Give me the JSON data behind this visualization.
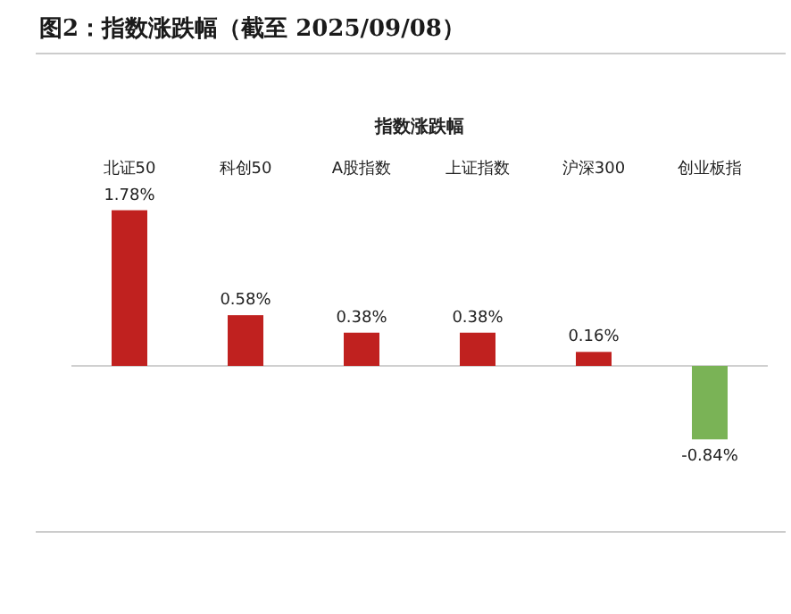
{
  "chart_data": {
    "type": "bar",
    "title": "图2：指数涨跌幅（截至 2025/09/08）",
    "subtitle": "指数涨跌幅",
    "categories": [
      "北证50",
      "科创50",
      "A股指数",
      "上证指数",
      "沪深300",
      "创业板指"
    ],
    "values": [
      1.78,
      0.58,
      0.38,
      0.38,
      0.16,
      -0.84
    ],
    "colors": [
      "#c0211f",
      "#c0211f",
      "#c0211f",
      "#c0211f",
      "#c0211f",
      "#7ab356"
    ],
    "value_labels": [
      "1.78%",
      "0.58%",
      "0.38%",
      "0.38%",
      "0.16%",
      "-0.84%"
    ]
  }
}
